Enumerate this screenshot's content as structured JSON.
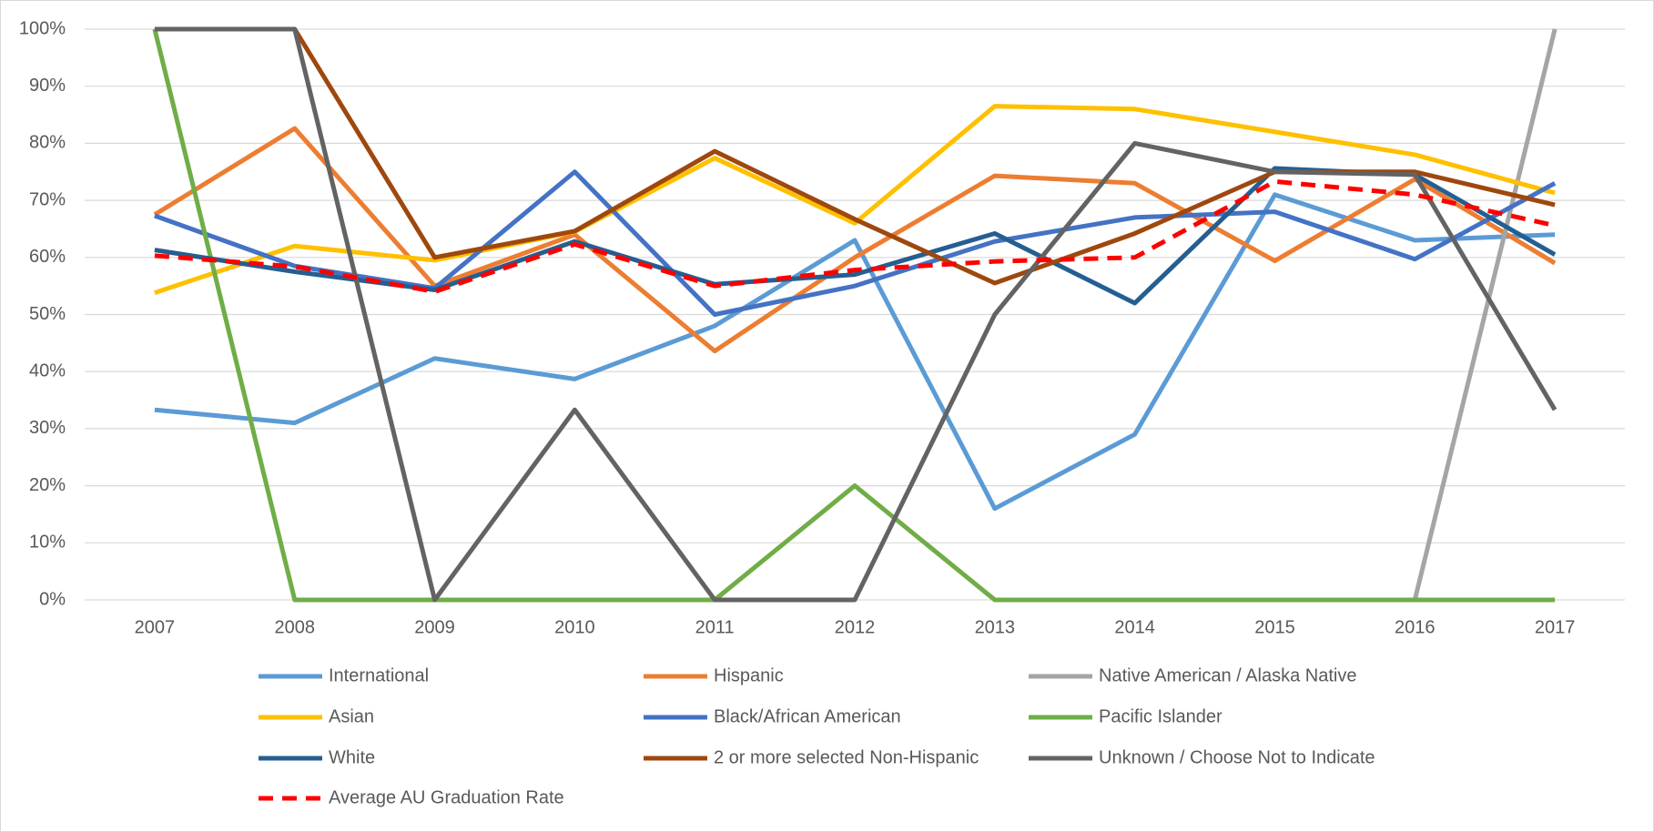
{
  "chart_data": {
    "type": "line",
    "categories": [
      "2007",
      "2008",
      "2009",
      "2010",
      "2011",
      "2012",
      "2013",
      "2014",
      "2015",
      "2016",
      "2017"
    ],
    "ylim": [
      0,
      100
    ],
    "yticks": [
      {
        "value": 0,
        "label": "0%"
      },
      {
        "value": 10,
        "label": "10%"
      },
      {
        "value": 20,
        "label": "20%"
      },
      {
        "value": 30,
        "label": "30%"
      },
      {
        "value": 40,
        "label": "40%"
      },
      {
        "value": 50,
        "label": "50%"
      },
      {
        "value": 60,
        "label": "60%"
      },
      {
        "value": 70,
        "label": "70%"
      },
      {
        "value": 80,
        "label": "80%"
      },
      {
        "value": 90,
        "label": "90%"
      },
      {
        "value": 100,
        "label": "100%"
      }
    ],
    "grid": true,
    "legend": "bottom",
    "series": [
      {
        "name": "International",
        "color": "#5B9BD5",
        "values": [
          33.3,
          31,
          42.3,
          38.7,
          48,
          63,
          16,
          29,
          71,
          63,
          64
        ]
      },
      {
        "name": "Hispanic",
        "color": "#ED7D31",
        "values": [
          67.5,
          82.6,
          55,
          64,
          43.6,
          60,
          74.3,
          73,
          59.4,
          73.7,
          59
        ]
      },
      {
        "name": "Native American / Alaska Native",
        "color": "#A5A5A5",
        "values": [
          null,
          null,
          null,
          null,
          null,
          null,
          null,
          null,
          null,
          0,
          100
        ]
      },
      {
        "name": "Asian",
        "color": "#FFC000",
        "values": [
          53.8,
          62,
          59.5,
          64.5,
          77.4,
          66,
          86.5,
          86,
          82,
          78,
          71.3
        ]
      },
      {
        "name": "Black/African American",
        "color": "#4472C4",
        "values": [
          67.3,
          58.5,
          54.6,
          75,
          50,
          55,
          62.8,
          67,
          68,
          59.7,
          73
        ]
      },
      {
        "name": "Pacific Islander",
        "color": "#70AD47",
        "values": [
          100,
          0,
          0,
          0,
          0,
          20,
          0,
          0,
          0,
          0,
          0
        ]
      },
      {
        "name": "White",
        "color": "#255E91",
        "values": [
          61.3,
          57.5,
          54.3,
          62.8,
          55.3,
          57,
          64.2,
          52,
          75.6,
          74.5,
          60.5
        ]
      },
      {
        "name": "2 or more selected Non-Hispanic",
        "color": "#9E480E",
        "values": [
          null,
          100,
          60,
          64.6,
          78.6,
          66.7,
          55.5,
          64.2,
          75,
          75,
          69.2
        ]
      },
      {
        "name": "Unknown / Choose Not to Indicate",
        "color": "#636363",
        "values": [
          100,
          100,
          0,
          33.3,
          0,
          0,
          50,
          80,
          75,
          74.5,
          33.3
        ]
      },
      {
        "name": "Average AU Graduation Rate",
        "color": "#FF0000",
        "dashed": true,
        "values": [
          60.3,
          58.4,
          54,
          62.3,
          55,
          57.8,
          59.3,
          60,
          73.3,
          71,
          65.6
        ]
      }
    ]
  }
}
